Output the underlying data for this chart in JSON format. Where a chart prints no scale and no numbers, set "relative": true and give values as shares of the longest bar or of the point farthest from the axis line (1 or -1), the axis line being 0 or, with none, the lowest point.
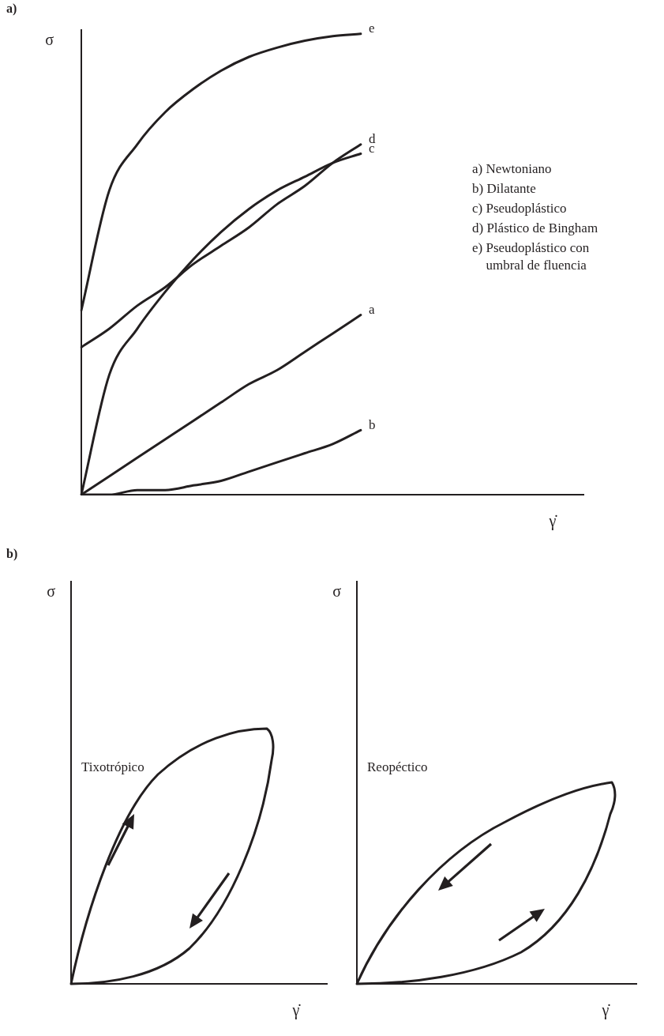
{
  "chart_data": [
    {
      "type": "line",
      "title": "a)",
      "xlabel": "γ̇",
      "ylabel": "σ",
      "relative": true,
      "marker": "none",
      "categories": [
        null,
        null,
        null,
        null,
        null,
        null,
        null,
        null,
        null,
        null,
        null,
        null,
        null,
        null,
        null,
        null,
        null,
        null,
        null
      ],
      "series": [
        {
          "name": "e",
          "color": "#231f20",
          "values": [
            0.4,
            0.66,
            0.76,
            0.83,
            0.88,
            0.92,
            0.95,
            0.97,
            0.985,
            0.995,
            1,
            null,
            null,
            null,
            null,
            null,
            null,
            null,
            null
          ]
        },
        {
          "name": "d",
          "color": "#231f20",
          "values": [
            0.32,
            0.36,
            0.41,
            0.45,
            0.5,
            0.54,
            0.58,
            0.63,
            0.67,
            0.72,
            0.76,
            null,
            null,
            null,
            null,
            null,
            null,
            null,
            null
          ]
        },
        {
          "name": "c",
          "color": "#231f20",
          "values": [
            0,
            0.26,
            0.36,
            0.44,
            0.51,
            0.57,
            0.62,
            0.66,
            0.69,
            0.72,
            0.74,
            null,
            null,
            null,
            null,
            null,
            null,
            null,
            null
          ]
        },
        {
          "name": "a",
          "color": "#231f20",
          "values": [
            0,
            0.04,
            0.08,
            0.12,
            0.16,
            0.2,
            0.24,
            0.27,
            0.31,
            0.35,
            0.39,
            null,
            null,
            null,
            null,
            null,
            null,
            null,
            null
          ]
        },
        {
          "name": "b",
          "color": "#231f20",
          "values": [
            0,
            0,
            0.01,
            0.01,
            0.02,
            0.03,
            0.05,
            0.07,
            0.09,
            0.11,
            0.14,
            null,
            null,
            null,
            null,
            null,
            null,
            null,
            null
          ]
        }
      ],
      "annotations": [
        "a) Newtoniano",
        "b) Dilatante",
        "c) Pseudoplástico",
        "d) Plástico de Bingham",
        "e) Pseudoplástico con umbral de fluencia"
      ]
    },
    {
      "type": "other",
      "title": "b)",
      "xlabel": "γ̇",
      "ylabel": "σ",
      "annotations": [
        "Tixotrópico"
      ]
    },
    {
      "type": "other",
      "xlabel": "γ̇",
      "ylabel": "σ",
      "annotations": [
        "Reopéctico"
      ]
    }
  ]
}
